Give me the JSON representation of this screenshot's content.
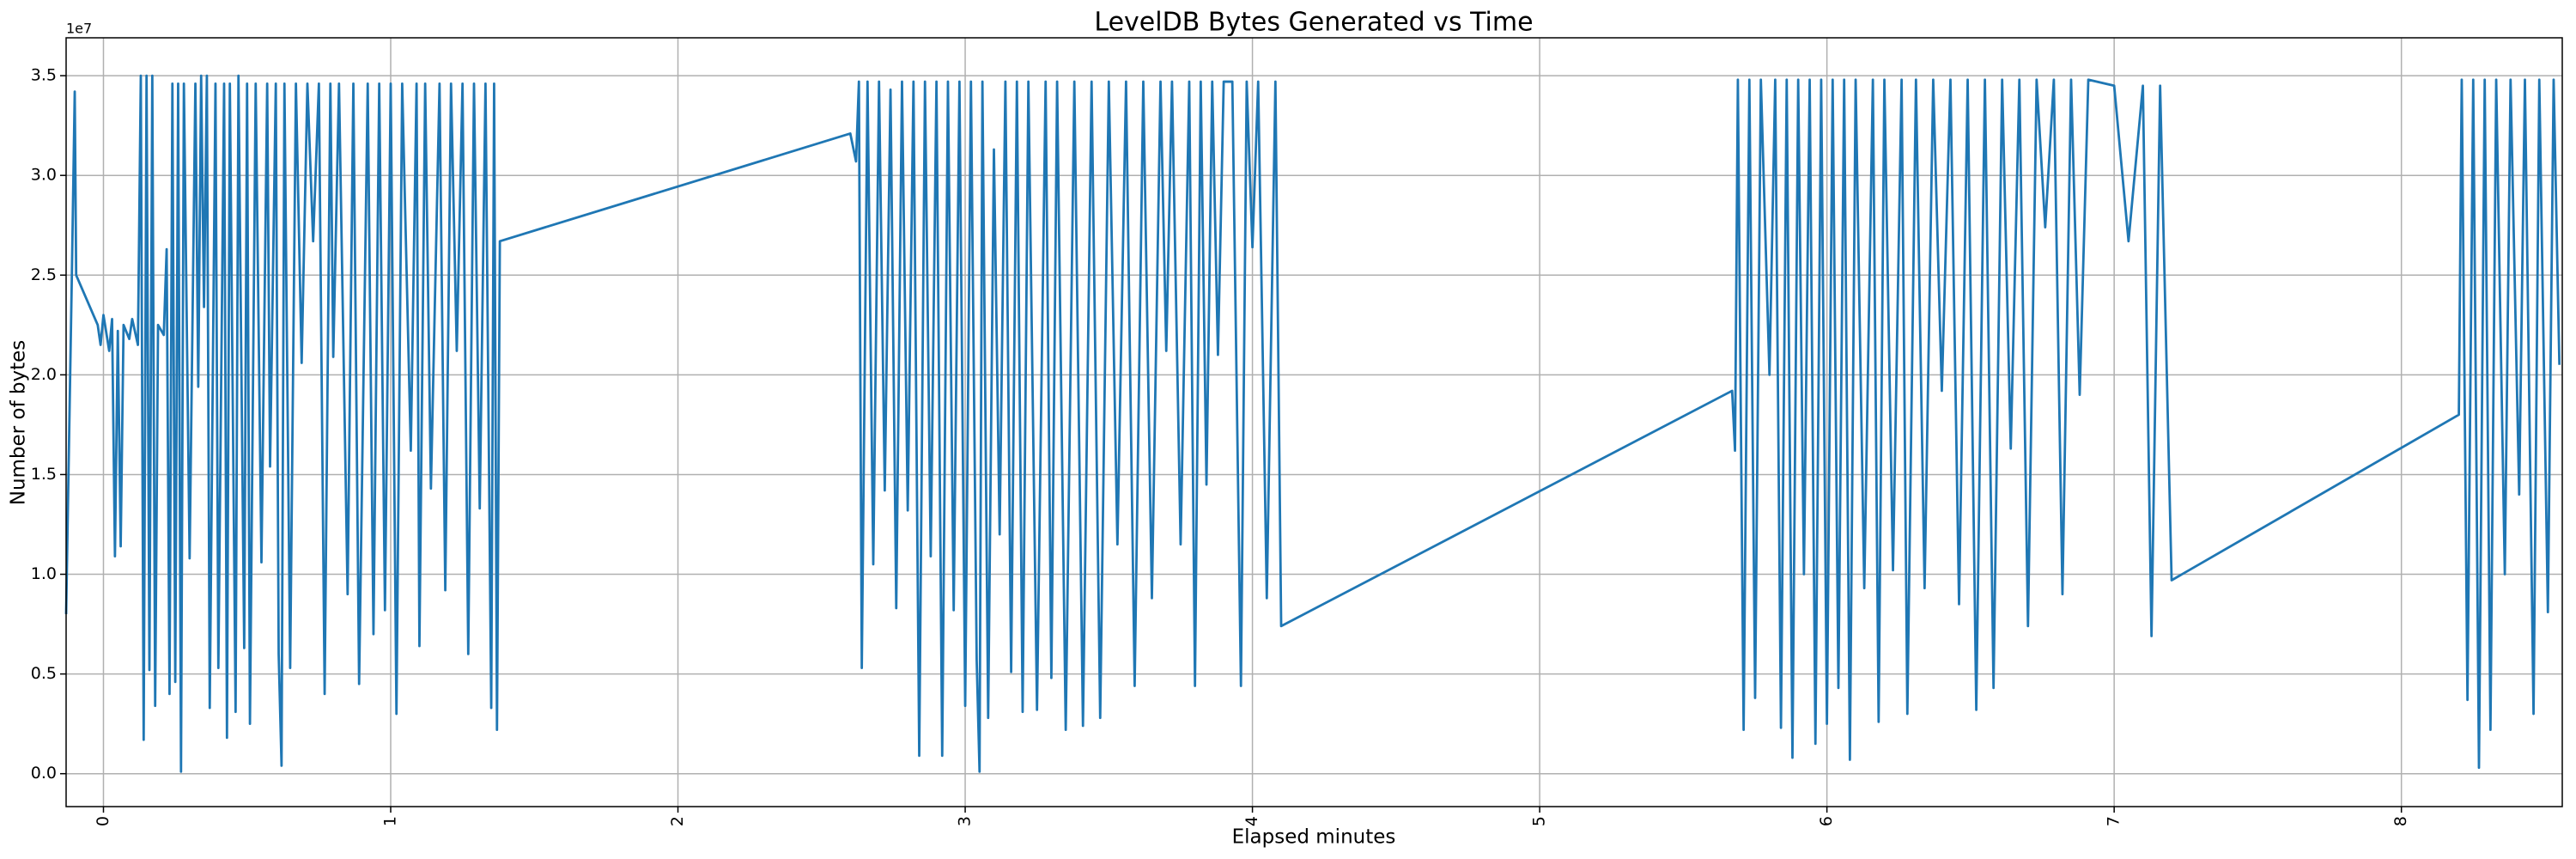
{
  "chart_data": {
    "type": "line",
    "title": "LevelDB Bytes Generated vs Time",
    "x_label": "Elapsed minutes",
    "y_label": "Number of bytes",
    "y_offset_label": "1e7",
    "color": "#1f77b4",
    "grid": true,
    "xlim": [
      -0.13,
      8.56
    ],
    "xticks": [
      0,
      1,
      2,
      3,
      4,
      5,
      6,
      7,
      8
    ],
    "ylim": [
      -1650000,
      36900000
    ],
    "yticks": [
      {
        "value": 0,
        "label": "0.0"
      },
      {
        "value": 5000000,
        "label": "0.5"
      },
      {
        "value": 10000000,
        "label": "1.0"
      },
      {
        "value": 15000000,
        "label": "1.5"
      },
      {
        "value": 20000000,
        "label": "2.0"
      },
      {
        "value": 25000000,
        "label": "2.5"
      },
      {
        "value": 30000000,
        "label": "3.0"
      },
      {
        "value": 35000000,
        "label": "3.5"
      }
    ],
    "x": [
      -0.13,
      -0.11,
      -0.1,
      -0.095,
      -0.02,
      -0.01,
      0,
      0.02,
      0.03,
      0.04,
      0.05,
      0.06,
      0.07,
      0.09,
      0.1,
      0.12,
      0.13,
      0.14,
      0.15,
      0.16,
      0.17,
      0.18,
      0.19,
      0.21,
      0.22,
      0.23,
      0.24,
      0.25,
      0.26,
      0.27,
      0.28,
      0.3,
      0.32,
      0.33,
      0.34,
      0.35,
      0.36,
      0.37,
      0.39,
      0.4,
      0.42,
      0.43,
      0.44,
      0.46,
      0.47,
      0.49,
      0.5,
      0.51,
      0.53,
      0.55,
      0.57,
      0.58,
      0.6,
      0.61,
      0.62,
      0.63,
      0.65,
      0.67,
      0.69,
      0.71,
      0.73,
      0.75,
      0.77,
      0.79,
      0.8,
      0.82,
      0.85,
      0.87,
      0.89,
      0.92,
      0.94,
      0.96,
      0.98,
      1.0,
      1.02,
      1.04,
      1.07,
      1.09,
      1.1,
      1.12,
      1.14,
      1.17,
      1.19,
      1.21,
      1.23,
      1.25,
      1.27,
      1.29,
      1.31,
      1.33,
      1.35,
      1.36,
      1.37,
      1.38,
      2.6,
      2.62,
      2.63,
      2.64,
      2.66,
      2.68,
      2.7,
      2.72,
      2.74,
      2.76,
      2.78,
      2.8,
      2.82,
      2.84,
      2.86,
      2.88,
      2.9,
      2.92,
      2.94,
      2.96,
      2.98,
      3.0,
      3.02,
      3.04,
      3.05,
      3.06,
      3.08,
      3.1,
      3.12,
      3.14,
      3.16,
      3.18,
      3.2,
      3.22,
      3.25,
      3.28,
      3.3,
      3.32,
      3.35,
      3.38,
      3.41,
      3.44,
      3.47,
      3.5,
      3.53,
      3.56,
      3.59,
      3.62,
      3.65,
      3.68,
      3.7,
      3.72,
      3.75,
      3.78,
      3.8,
      3.82,
      3.84,
      3.86,
      3.88,
      3.9,
      3.93,
      3.96,
      3.98,
      4.0,
      4.02,
      4.05,
      4.08,
      4.1,
      5.67,
      5.68,
      5.69,
      5.71,
      5.73,
      5.75,
      5.77,
      5.8,
      5.82,
      5.84,
      5.86,
      5.88,
      5.9,
      5.92,
      5.94,
      5.96,
      5.98,
      6.0,
      6.02,
      6.04,
      6.06,
      6.08,
      6.1,
      6.13,
      6.16,
      6.18,
      6.2,
      6.23,
      6.26,
      6.28,
      6.31,
      6.34,
      6.37,
      6.4,
      6.43,
      6.46,
      6.49,
      6.52,
      6.55,
      6.58,
      6.61,
      6.64,
      6.67,
      6.7,
      6.73,
      6.76,
      6.79,
      6.82,
      6.85,
      6.88,
      6.91,
      7.0,
      7.05,
      7.1,
      7.13,
      7.16,
      7.2,
      8.2,
      8.21,
      8.23,
      8.25,
      8.27,
      8.29,
      8.31,
      8.33,
      8.36,
      8.38,
      8.41,
      8.43,
      8.46,
      8.48,
      8.51,
      8.53,
      8.55
    ],
    "values": [
      8000000,
      25000000,
      34200000,
      25000000,
      22500000,
      21500000,
      23000000,
      21200000,
      22800000,
      10900000,
      22200000,
      11400000,
      22500000,
      21800000,
      22800000,
      21500000,
      35000000,
      1700000,
      35000000,
      5200000,
      35000000,
      3400000,
      22500000,
      22000000,
      26300000,
      4000000,
      34600000,
      4600000,
      34600000,
      100000,
      34600000,
      10800000,
      34600000,
      19400000,
      35000000,
      23400000,
      35000000,
      3300000,
      34600000,
      5300000,
      34600000,
      1800000,
      34600000,
      3100000,
      35000000,
      6300000,
      34600000,
      2500000,
      34600000,
      10600000,
      34600000,
      15400000,
      34600000,
      6000000,
      400000,
      34600000,
      5300000,
      34600000,
      20600000,
      34600000,
      26700000,
      34600000,
      4000000,
      34600000,
      20900000,
      34600000,
      9000000,
      34600000,
      4500000,
      34600000,
      7000000,
      34600000,
      8200000,
      34600000,
      3000000,
      34600000,
      16200000,
      34600000,
      6400000,
      34600000,
      14300000,
      34600000,
      9200000,
      34600000,
      21200000,
      34600000,
      6000000,
      34600000,
      13300000,
      34600000,
      3300000,
      34600000,
      2200000,
      26700000,
      32100000,
      30700000,
      34700000,
      5300000,
      34700000,
      10500000,
      34700000,
      14200000,
      34300000,
      8300000,
      34700000,
      13200000,
      34700000,
      900000,
      34700000,
      10900000,
      34700000,
      900000,
      34700000,
      8200000,
      34700000,
      3400000,
      34700000,
      5700000,
      100000,
      34700000,
      2800000,
      31300000,
      12000000,
      34700000,
      5100000,
      34700000,
      3100000,
      34700000,
      3200000,
      34700000,
      4800000,
      34700000,
      2200000,
      34700000,
      2400000,
      34700000,
      2800000,
      34700000,
      11500000,
      34700000,
      4400000,
      34700000,
      8800000,
      34700000,
      21200000,
      34700000,
      11500000,
      34700000,
      4400000,
      34700000,
      14500000,
      34700000,
      21000000,
      34700000,
      34700000,
      4400000,
      34700000,
      26400000,
      34700000,
      8800000,
      34700000,
      7400000,
      19200000,
      16200000,
      34800000,
      2200000,
      34800000,
      3800000,
      34800000,
      20000000,
      34800000,
      2300000,
      34800000,
      800000,
      34800000,
      10000000,
      34800000,
      1500000,
      34800000,
      2500000,
      34800000,
      4300000,
      34800000,
      700000,
      34800000,
      9300000,
      34800000,
      2600000,
      34800000,
      10200000,
      34800000,
      3000000,
      34800000,
      9300000,
      34800000,
      19200000,
      34800000,
      8500000,
      34800000,
      3200000,
      34800000,
      4300000,
      34800000,
      16300000,
      34800000,
      7400000,
      34800000,
      27400000,
      34800000,
      9000000,
      34800000,
      19000000,
      34800000,
      34500000,
      26700000,
      34500000,
      6900000,
      34500000,
      9700000,
      18000000,
      34800000,
      3700000,
      34800000,
      300000,
      34800000,
      2200000,
      34800000,
      10000000,
      34800000,
      14000000,
      34800000,
      3000000,
      34800000,
      8100000,
      34800000,
      20500000
    ]
  }
}
